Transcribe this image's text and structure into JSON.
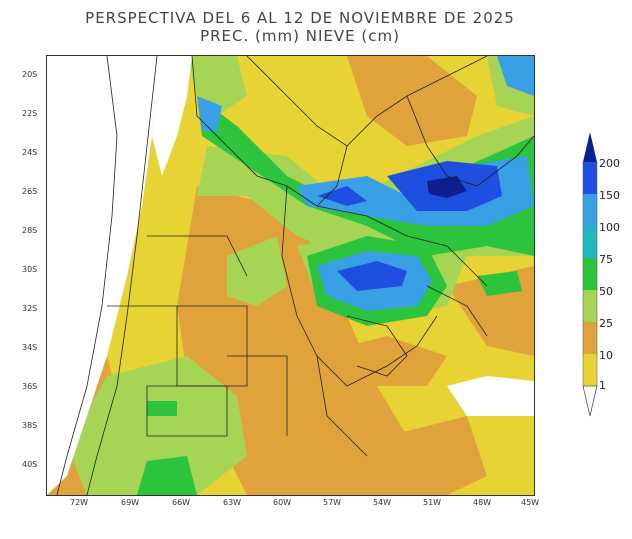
{
  "title": {
    "line1": "PERSPECTIVA DEL 6 AL 12 DE NOVIEMBRE DE 2025",
    "line2": "PREC. (mm) NIEVE (cm)"
  },
  "axes": {
    "lat_labels": [
      "20S",
      "22S",
      "24S",
      "26S",
      "28S",
      "30S",
      "32S",
      "34S",
      "36S",
      "38S",
      "40S"
    ],
    "lon_labels": [
      "72W",
      "69W",
      "66W",
      "63W",
      "60W",
      "57W",
      "54W",
      "51W",
      "48W",
      "45W"
    ]
  },
  "legend": {
    "levels": [
      "200",
      "150",
      "100",
      "75",
      "50",
      "25",
      "10",
      "1"
    ],
    "colors": {
      "c1": "#e8d335",
      "c10": "#e0a33c",
      "c25": "#a6d454",
      "c50": "#2dc43d",
      "c75": "#1fb8c0",
      "c100": "#3aa0e6",
      "c150": "#1f4fe0",
      "c200": "#0b1f8f",
      "none": "#ffffff"
    }
  }
}
